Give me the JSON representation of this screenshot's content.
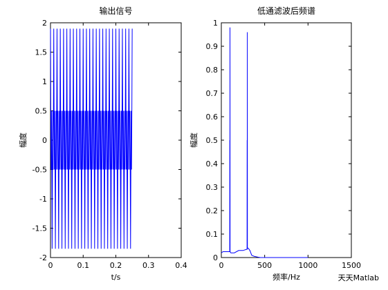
{
  "chart_data": [
    {
      "type": "line",
      "title": "输出信号",
      "xlabel": "t/s",
      "ylabel": "幅度",
      "xlim": [
        0,
        0.4
      ],
      "xticks": [
        0,
        0.1,
        0.2,
        0.3,
        0.4
      ],
      "ylim": [
        -2,
        2
      ],
      "yticks": [
        -2,
        -1.5,
        -1,
        -0.5,
        0,
        0.5,
        1,
        1.5,
        2
      ],
      "x": [
        0,
        0.001,
        0.002,
        0.003,
        0.004,
        0.005,
        0.006,
        0.007,
        0.008,
        0.009,
        0.01,
        0.011,
        0.012,
        0.013,
        0.014,
        0.015,
        0.016,
        0.017,
        0.018,
        0.019,
        0.02,
        0.021,
        0.022,
        0.023,
        0.024,
        0.025,
        0.026,
        0.027,
        0.028,
        0.029,
        0.03,
        0.031,
        0.032,
        0.033,
        0.034,
        0.035,
        0.036,
        0.037,
        0.038,
        0.039,
        0.04,
        0.041,
        0.042,
        0.043,
        0.044,
        0.045,
        0.046,
        0.047,
        0.048,
        0.049,
        0.05,
        0.051,
        0.052,
        0.053,
        0.054,
        0.055,
        0.056,
        0.057,
        0.058,
        0.059,
        0.06,
        0.061,
        0.062,
        0.063,
        0.064,
        0.065,
        0.066,
        0.067,
        0.068,
        0.069,
        0.07,
        0.071,
        0.072,
        0.073,
        0.074,
        0.075,
        0.076,
        0.077,
        0.078,
        0.079,
        0.08,
        0.081,
        0.082,
        0.083,
        0.084,
        0.085,
        0.086,
        0.087,
        0.088,
        0.089,
        0.09,
        0.091,
        0.092,
        0.093,
        0.094,
        0.095,
        0.096,
        0.097,
        0.098,
        0.099,
        0.1,
        0.101,
        0.102,
        0.103,
        0.104,
        0.105,
        0.106,
        0.107,
        0.108,
        0.109,
        0.11,
        0.111,
        0.112,
        0.113,
        0.114,
        0.115,
        0.116,
        0.117,
        0.118,
        0.119,
        0.12,
        0.121,
        0.122,
        0.123,
        0.124,
        0.125,
        0.126,
        0.127,
        0.128,
        0.129,
        0.13,
        0.131,
        0.132,
        0.133,
        0.134,
        0.135,
        0.136,
        0.137,
        0.138,
        0.139,
        0.14,
        0.141,
        0.142,
        0.143,
        0.144,
        0.145,
        0.146,
        0.147,
        0.148,
        0.149,
        0.15,
        0.151,
        0.152,
        0.153,
        0.154,
        0.155,
        0.156,
        0.157,
        0.158,
        0.159,
        0.16,
        0.161,
        0.162,
        0.163,
        0.164,
        0.165,
        0.166,
        0.167,
        0.168,
        0.169,
        0.17,
        0.171,
        0.172,
        0.173,
        0.174,
        0.175,
        0.176,
        0.177,
        0.178,
        0.179,
        0.18,
        0.181,
        0.182,
        0.183,
        0.184,
        0.185,
        0.186,
        0.187,
        0.188,
        0.189,
        0.19,
        0.191,
        0.192,
        0.193,
        0.194,
        0.195,
        0.196,
        0.197,
        0.198,
        0.199,
        0.2,
        0.201,
        0.202,
        0.203,
        0.204,
        0.205,
        0.206,
        0.207,
        0.208,
        0.209,
        0.21,
        0.211,
        0.212,
        0.213,
        0.214,
        0.215,
        0.216,
        0.217,
        0.218,
        0.219,
        0.22,
        0.221,
        0.222,
        0.223,
        0.224,
        0.225,
        0.226,
        0.227,
        0.228,
        0.229,
        0.23,
        0.231,
        0.232,
        0.233,
        0.234,
        0.235,
        0.236,
        0.237,
        0.238,
        0.239,
        0.24,
        0.241,
        0.242,
        0.243,
        0.244,
        0.245,
        0.246,
        0.247,
        0.248,
        0.249,
        0.25
      ],
      "series": [
        {
          "color": "#0000ff",
          "values": [
            1.9,
            0.5,
            -0.5,
            0.5,
            -0.5,
            -1.85,
            -0.5,
            0.5,
            -0.5,
            0.5,
            1.9,
            0.5,
            -0.5,
            0.5,
            -0.5,
            -1.85,
            -0.5,
            0.5,
            -0.5,
            0.5,
            1.9,
            0.5,
            -0.5,
            0.5,
            -0.5,
            -1.85,
            -0.5,
            0.5,
            -0.5,
            0.5,
            1.9,
            0.5,
            -0.5,
            0.5,
            -0.5,
            -1.85,
            -0.5,
            0.5,
            -0.5,
            0.5,
            1.9,
            0.5,
            -0.5,
            0.5,
            -0.5,
            -1.85,
            -0.5,
            0.5,
            -0.5,
            0.5,
            1.9,
            0.5,
            -0.5,
            0.5,
            -0.5,
            -1.85,
            -0.5,
            0.5,
            -0.5,
            0.5,
            1.9,
            0.5,
            -0.5,
            0.5,
            -0.5,
            -1.85,
            -0.5,
            0.5,
            -0.5,
            0.5,
            1.9,
            0.5,
            -0.5,
            0.5,
            -0.5,
            -1.85,
            -0.5,
            0.5,
            -0.5,
            0.5,
            1.9,
            0.5,
            -0.5,
            0.5,
            -0.5,
            -1.85,
            -0.5,
            0.5,
            -0.5,
            0.5,
            1.9,
            0.5,
            -0.5,
            0.5,
            -0.5,
            -1.85,
            -0.5,
            0.5,
            -0.5,
            0.5,
            1.9,
            0.5,
            -0.5,
            0.5,
            -0.5,
            -1.85,
            -0.5,
            0.5,
            -0.5,
            0.5,
            1.9,
            0.5,
            -0.5,
            0.5,
            -0.5,
            -1.85,
            -0.5,
            0.5,
            -0.5,
            0.5,
            1.9,
            0.5,
            -0.5,
            0.5,
            -0.5,
            -1.85,
            -0.5,
            0.5,
            -0.5,
            0.5,
            1.9,
            0.5,
            -0.5,
            0.5,
            -0.5,
            -1.85,
            -0.5,
            0.5,
            -0.5,
            0.5,
            1.9,
            0.5,
            -0.5,
            0.5,
            -0.5,
            -1.85,
            -0.5,
            0.5,
            -0.5,
            0.5,
            1.9,
            0.5,
            -0.5,
            0.5,
            -0.5,
            -1.85,
            -0.5,
            0.5,
            -0.5,
            0.5,
            1.9,
            0.5,
            -0.5,
            0.5,
            -0.5,
            -1.85,
            -0.5,
            0.5,
            -0.5,
            0.5,
            1.9,
            0.5,
            -0.5,
            0.5,
            -0.5,
            -1.85,
            -0.5,
            0.5,
            -0.5,
            0.5,
            1.9,
            0.5,
            -0.5,
            0.5,
            -0.5,
            -1.85,
            -0.5,
            0.5,
            -0.5,
            0.5,
            1.9,
            0.5,
            -0.5,
            0.5,
            -0.5,
            -1.85,
            -0.5,
            0.5,
            -0.5,
            0.5,
            1.9,
            0.5,
            -0.5,
            0.5,
            -0.5,
            -1.85,
            -0.5,
            0.5,
            -0.5,
            0.5,
            1.9,
            0.5,
            -0.5,
            0.5,
            -0.5,
            -1.85,
            -0.5,
            0.5,
            -0.5,
            0.5,
            1.9,
            0.5,
            -0.5,
            0.5,
            -0.5,
            -1.85,
            -0.5,
            0.5,
            -0.5,
            0.5,
            1.9,
            0.5,
            -0.5,
            0.5,
            -0.5,
            -1.85,
            -0.5,
            0.5,
            -0.5,
            0.5,
            1.9,
            0.5,
            -0.5,
            0.5,
            -0.5,
            -1.85,
            -0.5,
            0.5,
            -0.5,
            0.5,
            1.9
          ]
        }
      ]
    },
    {
      "type": "line",
      "title": "低通滤波后频谱",
      "xlabel": "频率/Hz",
      "ylabel": "幅度",
      "xlim": [
        0,
        1500
      ],
      "xticks": [
        0,
        500,
        1000,
        1500
      ],
      "ylim": [
        0,
        1
      ],
      "yticks": [
        0,
        0.1,
        0.2,
        0.3,
        0.4,
        0.5,
        0.6,
        0.7,
        0.8,
        0.9,
        1
      ],
      "x": [
        0,
        20,
        50,
        90,
        97,
        98,
        99,
        100,
        101,
        110,
        150,
        200,
        250,
        290,
        297,
        298,
        299,
        300,
        301,
        310,
        330,
        350,
        380,
        420,
        450,
        500,
        1000
      ],
      "series": [
        {
          "color": "#0000ff",
          "values": [
            0.02,
            0.025,
            0.025,
            0.025,
            0.025,
            0.5,
            0.025,
            0.98,
            0.025,
            0.02,
            0.02,
            0.03,
            0.03,
            0.035,
            0.035,
            0.5,
            0.035,
            0.96,
            0.04,
            0.04,
            0.03,
            0.01,
            0.005,
            0.002,
            0,
            0,
            0
          ]
        }
      ]
    }
  ],
  "watermark": "天天Matlab"
}
